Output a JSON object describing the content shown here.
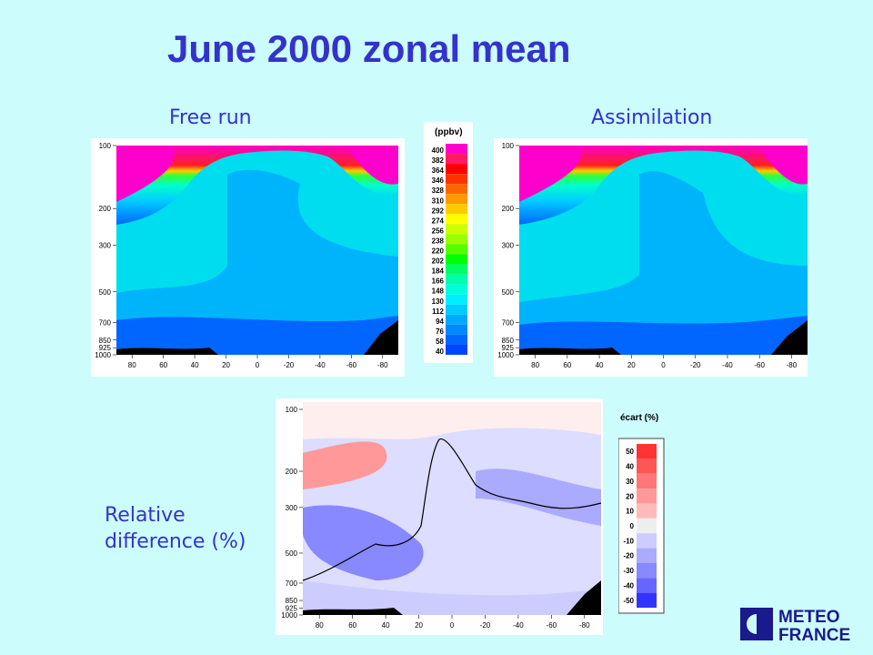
{
  "title": "June 2000 zonal mean",
  "labels": {
    "free_run": "Free run",
    "assimilation": "Assimilation",
    "relative_difference_line1": "Relative",
    "relative_difference_line2": "difference (%)"
  },
  "logo": {
    "line1": "METEO",
    "line2": "FRANCE"
  },
  "chart_data": [
    {
      "type": "heatmap",
      "title": "Free run",
      "x_ticks": [
        80,
        60,
        40,
        20,
        0,
        -20,
        -40,
        -60,
        -80
      ],
      "y_ticks": [
        100,
        200,
        300,
        500,
        700,
        850,
        925,
        1000
      ],
      "x_range": [
        90,
        -90
      ],
      "y_range": [
        100,
        1000
      ],
      "y_scale": "log",
      "colorbar": "ppbv"
    },
    {
      "type": "heatmap",
      "title": "Assimilation",
      "x_ticks": [
        80,
        60,
        40,
        20,
        0,
        -20,
        -40,
        -60,
        -80
      ],
      "y_ticks": [
        100,
        200,
        300,
        500,
        700,
        850,
        925,
        1000
      ],
      "x_range": [
        90,
        -90
      ],
      "y_range": [
        100,
        1000
      ],
      "y_scale": "log",
      "colorbar": "ppbv"
    },
    {
      "type": "heatmap",
      "title": "Relative difference (%)",
      "x_ticks": [
        80,
        60,
        40,
        20,
        0,
        -20,
        -40,
        -60,
        -80
      ],
      "y_ticks": [
        100,
        200,
        300,
        500,
        700,
        850,
        925,
        1000
      ],
      "x_range": [
        90,
        -90
      ],
      "y_range": [
        100,
        1000
      ],
      "y_scale": "log",
      "colorbar": "écart (%)"
    }
  ],
  "colorbar_ppbv": {
    "title": "(ppbv)",
    "levels": [
      400,
      382,
      364,
      346,
      328,
      310,
      292,
      274,
      256,
      238,
      220,
      202,
      184,
      166,
      148,
      130,
      112,
      94,
      76,
      58,
      40
    ],
    "colors": [
      "#ff00cc",
      "#ff1a66",
      "#ff0000",
      "#ff3300",
      "#ff6600",
      "#ff9900",
      "#ffcc00",
      "#ffff00",
      "#ccff00",
      "#99ff00",
      "#55ff00",
      "#00ff00",
      "#00ff66",
      "#00ffaa",
      "#00ffdd",
      "#00eeff",
      "#00ccff",
      "#00aaff",
      "#0088ff",
      "#0066ff",
      "#0044ff"
    ]
  },
  "colorbar_ecart": {
    "title": "écart (%)",
    "levels": [
      50,
      40,
      30,
      20,
      10,
      0,
      -10,
      -20,
      -30,
      -40,
      -50
    ],
    "colors": [
      "#ff3333",
      "#ff5555",
      "#ff7777",
      "#ff9999",
      "#ffbbbb",
      "#eeeeee",
      "#ccccff",
      "#aaaaff",
      "#8888ff",
      "#6666ff",
      "#3333ff"
    ]
  }
}
